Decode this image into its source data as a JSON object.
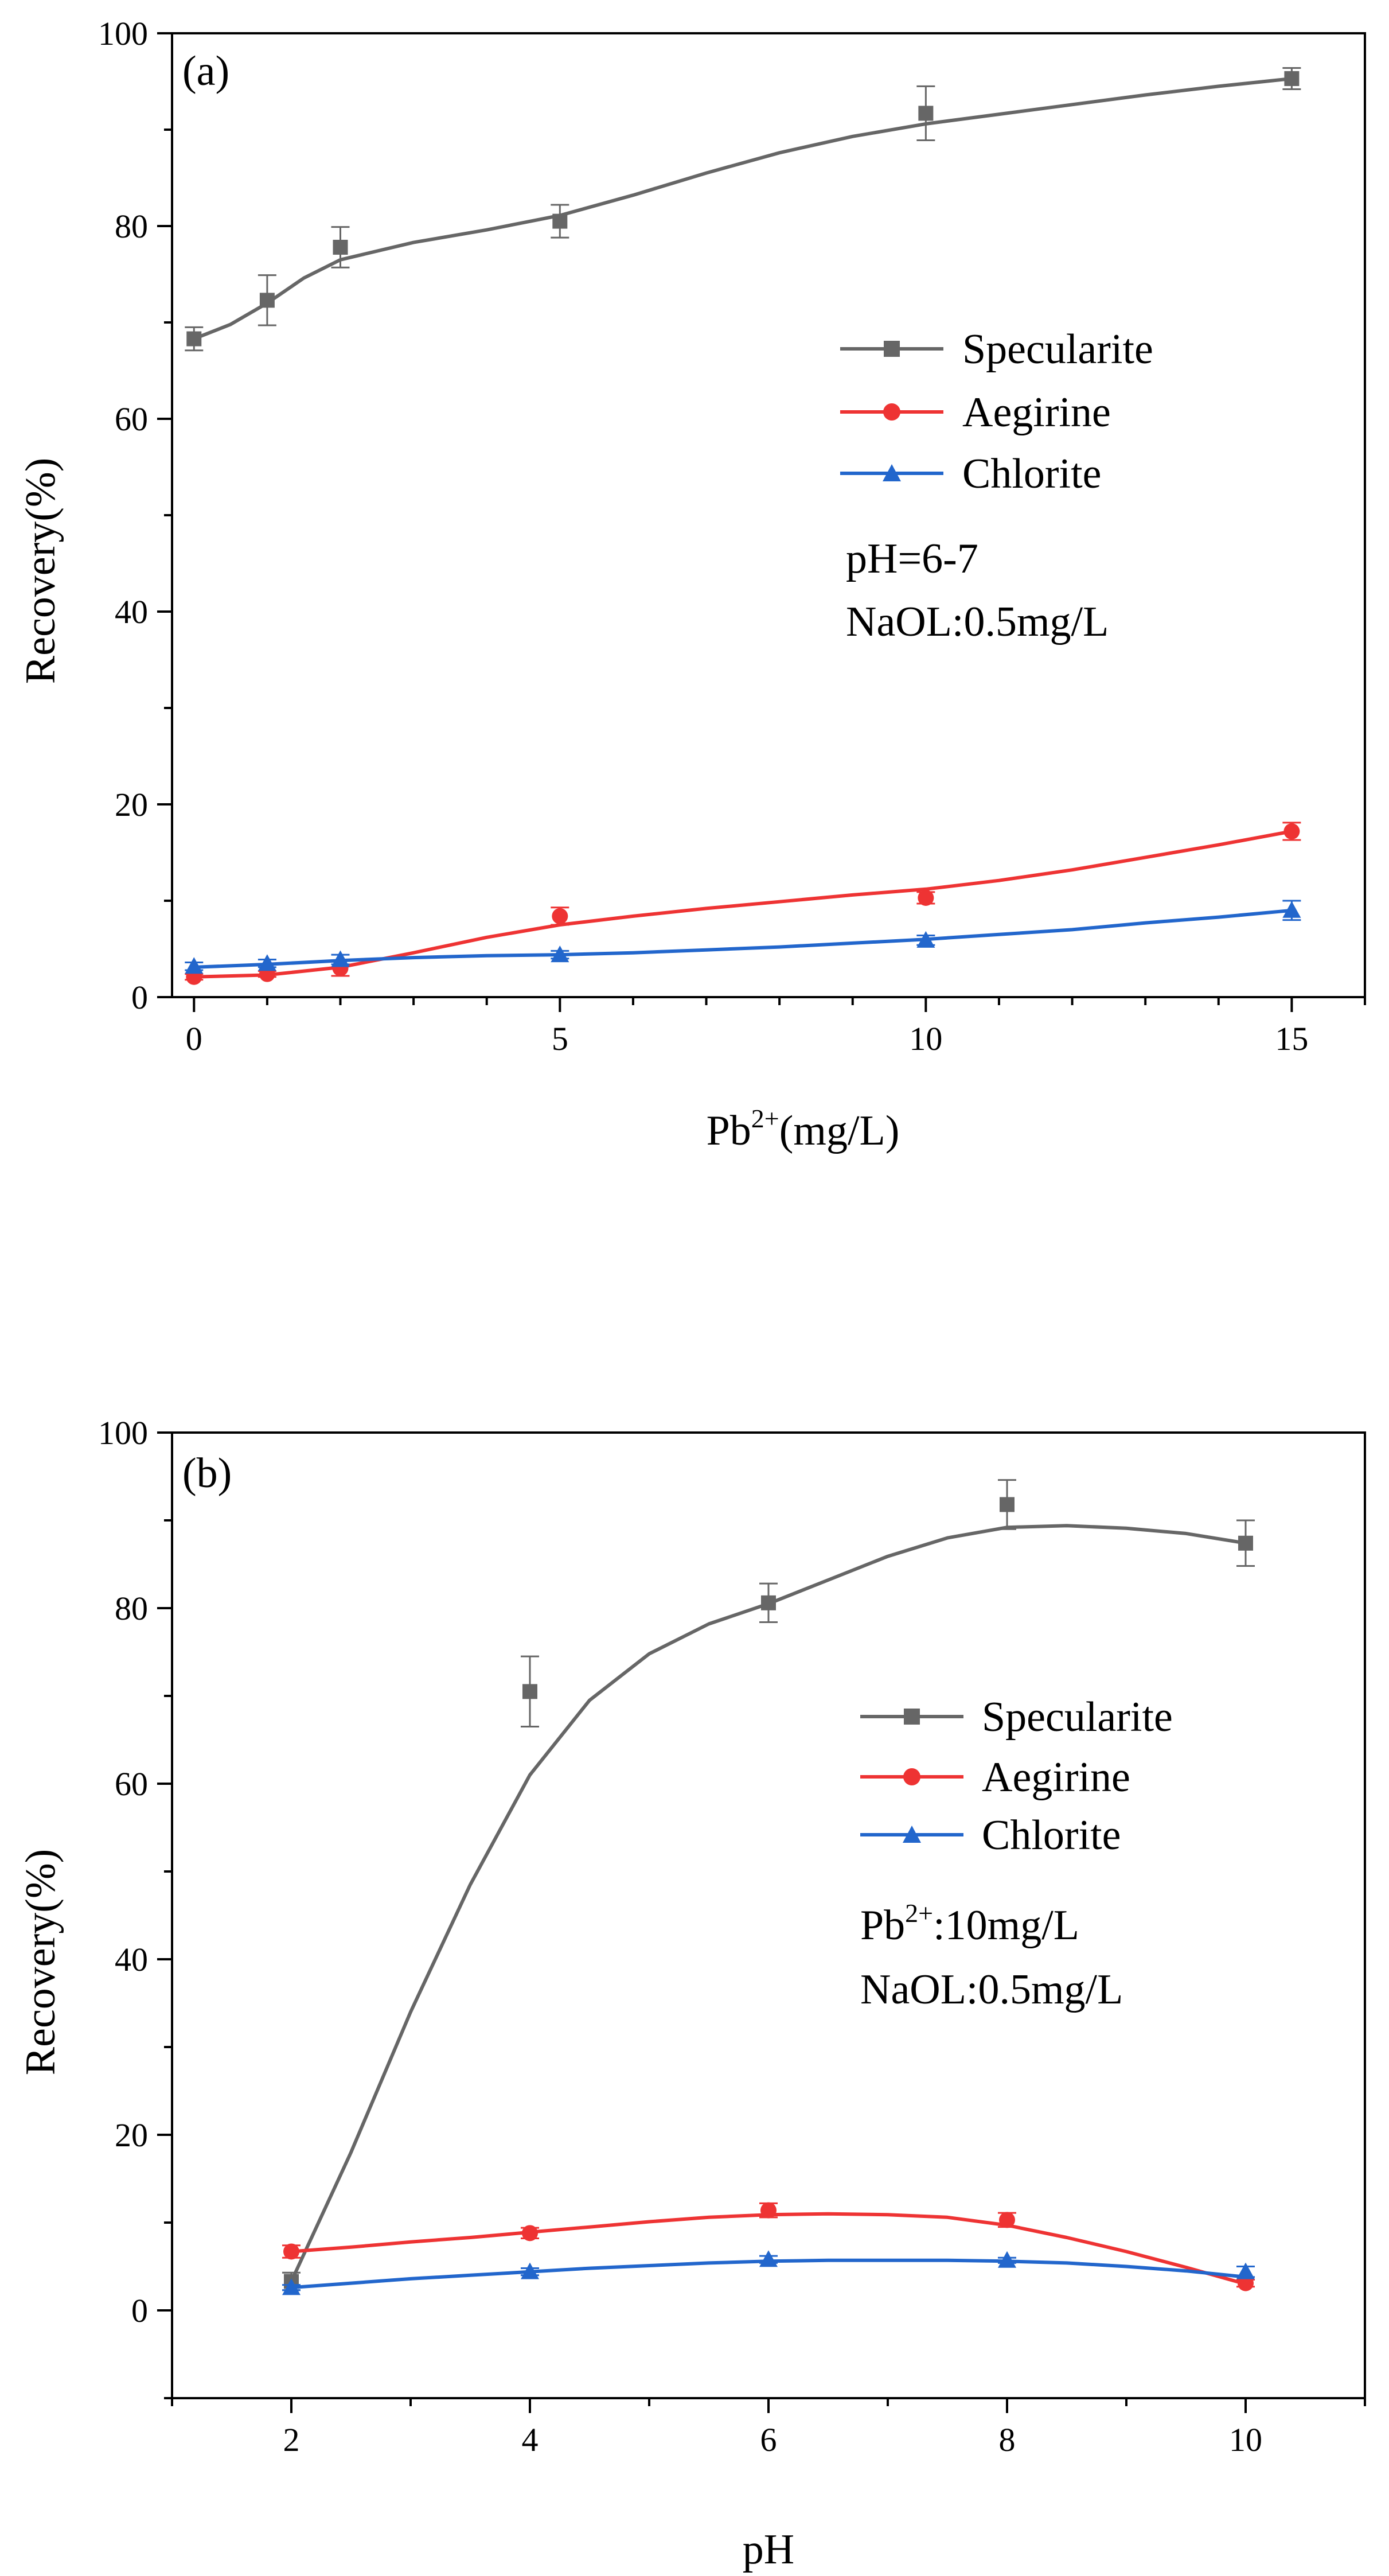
{
  "chart_data": [
    {
      "type": "line",
      "panel_label": "(a)",
      "xlabel": "Pb",
      "xlabel_sup": "2+",
      "xlabel_suffix": "(mg/L)",
      "ylabel": "Recovery(%)",
      "xlim": [
        -0.3,
        16
      ],
      "ylim": [
        0,
        100
      ],
      "xticks": [
        0,
        5,
        10,
        15
      ],
      "yticks": [
        0,
        20,
        40,
        60,
        80,
        100
      ],
      "legend_position": "right-center",
      "annotations": [
        "pH=6-7",
        "NaOL:0.5mg/L"
      ],
      "series": [
        {
          "name": "Specularite",
          "color": "#666666",
          "marker": "square",
          "x": [
            0,
            1,
            2,
            5,
            10,
            15
          ],
          "values": [
            68.3,
            72.3,
            77.8,
            80.5,
            91.7,
            95.3
          ],
          "error": [
            1.2,
            2.6,
            2.1,
            1.7,
            2.8,
            1.1
          ],
          "curve_x": [
            0,
            0.5,
            1,
            1.5,
            2,
            3,
            4,
            5,
            6,
            7,
            8,
            9,
            10,
            11,
            12,
            13,
            14,
            15
          ],
          "curve_y": [
            68.3,
            69.8,
            72.0,
            74.6,
            76.5,
            78.3,
            79.6,
            81.1,
            83.2,
            85.5,
            87.6,
            89.3,
            90.6,
            91.6,
            92.6,
            93.6,
            94.5,
            95.3
          ]
        },
        {
          "name": "Aegirine",
          "color": "#ee3333",
          "marker": "circle",
          "x": [
            0,
            1,
            2,
            5,
            10,
            15
          ],
          "values": [
            2.1,
            2.4,
            3.0,
            8.4,
            10.3,
            17.2
          ],
          "error": [
            0.3,
            0.3,
            0.8,
            0.9,
            0.6,
            0.9
          ],
          "curve_x": [
            0,
            1,
            2,
            3,
            4,
            5,
            6,
            7,
            8,
            9,
            10,
            11,
            12,
            13,
            14,
            15
          ],
          "curve_y": [
            2.1,
            2.3,
            3.1,
            4.6,
            6.2,
            7.5,
            8.4,
            9.2,
            9.9,
            10.6,
            11.2,
            12.1,
            13.2,
            14.5,
            15.8,
            17.2
          ]
        },
        {
          "name": "Chlorite",
          "color": "#2266cc",
          "marker": "triangle",
          "x": [
            0,
            1,
            2,
            5,
            10,
            15
          ],
          "values": [
            3.2,
            3.5,
            3.9,
            4.4,
            5.9,
            9.0
          ],
          "error": [
            0.4,
            0.4,
            0.5,
            0.4,
            0.5,
            1.0
          ],
          "curve_x": [
            0,
            1,
            2,
            3,
            4,
            5,
            6,
            7,
            8,
            9,
            10,
            11,
            12,
            13,
            14,
            15
          ],
          "curve_y": [
            3.1,
            3.4,
            3.8,
            4.1,
            4.3,
            4.4,
            4.6,
            4.9,
            5.2,
            5.6,
            6.0,
            6.5,
            7.0,
            7.7,
            8.3,
            9.0
          ]
        }
      ]
    },
    {
      "type": "line",
      "panel_label": "(b)",
      "xlabel": "pH",
      "ylabel": "Recovery(%)",
      "xlim": [
        1,
        11
      ],
      "ylim": [
        -10,
        100
      ],
      "xticks": [
        2,
        4,
        6,
        8,
        10
      ],
      "yticks": [
        0,
        20,
        40,
        60,
        80,
        100
      ],
      "legend_position": "right-center",
      "annotations": [
        "Pb",
        "2+",
        ":10mg/L",
        "NaOL:0.5mg/L"
      ],
      "series": [
        {
          "name": "Specularite",
          "color": "#666666",
          "marker": "square",
          "x": [
            2,
            4,
            6,
            8,
            10
          ],
          "values": [
            3.3,
            70.5,
            80.6,
            91.8,
            87.4
          ],
          "error": [
            1.0,
            4.0,
            2.2,
            2.8,
            2.6
          ],
          "curve_x": [
            2,
            2.5,
            3,
            3.5,
            4,
            4.5,
            5,
            5.5,
            6,
            6.5,
            7,
            7.5,
            8,
            8.5,
            9,
            9.5,
            10
          ],
          "curve_y": [
            3.3,
            18,
            34,
            48.5,
            61,
            69.5,
            74.8,
            78.2,
            80.5,
            83.2,
            85.9,
            88.0,
            89.2,
            89.4,
            89.1,
            88.5,
            87.4
          ]
        },
        {
          "name": "Aegirine",
          "color": "#ee3333",
          "marker": "circle",
          "x": [
            2,
            4,
            6,
            8,
            10
          ],
          "values": [
            6.7,
            8.8,
            11.4,
            10.3,
            3.1
          ],
          "error": [
            0.7,
            0.6,
            0.8,
            0.8,
            0.4
          ],
          "curve_x": [
            2,
            2.5,
            3,
            3.5,
            4,
            4.5,
            5,
            5.5,
            6,
            6.5,
            7,
            7.5,
            8,
            8.5,
            9,
            9.5,
            10
          ],
          "curve_y": [
            6.7,
            7.2,
            7.8,
            8.3,
            8.9,
            9.5,
            10.1,
            10.6,
            10.9,
            11.0,
            10.9,
            10.6,
            9.7,
            8.3,
            6.7,
            4.9,
            3.0
          ]
        },
        {
          "name": "Chlorite",
          "color": "#2266cc",
          "marker": "triangle",
          "x": [
            2,
            4,
            6,
            8,
            10
          ],
          "values": [
            2.6,
            4.4,
            5.8,
            5.7,
            4.4
          ],
          "error": [
            0.3,
            0.4,
            0.4,
            0.3,
            0.6
          ],
          "curve_x": [
            2,
            2.5,
            3,
            3.5,
            4,
            4.5,
            5,
            5.5,
            6,
            6.5,
            7,
            7.5,
            8,
            8.5,
            9,
            9.5,
            10
          ],
          "curve_y": [
            2.6,
            3.1,
            3.6,
            4.0,
            4.4,
            4.8,
            5.1,
            5.4,
            5.6,
            5.7,
            5.7,
            5.7,
            5.6,
            5.4,
            5.0,
            4.5,
            3.8
          ]
        }
      ]
    }
  ]
}
